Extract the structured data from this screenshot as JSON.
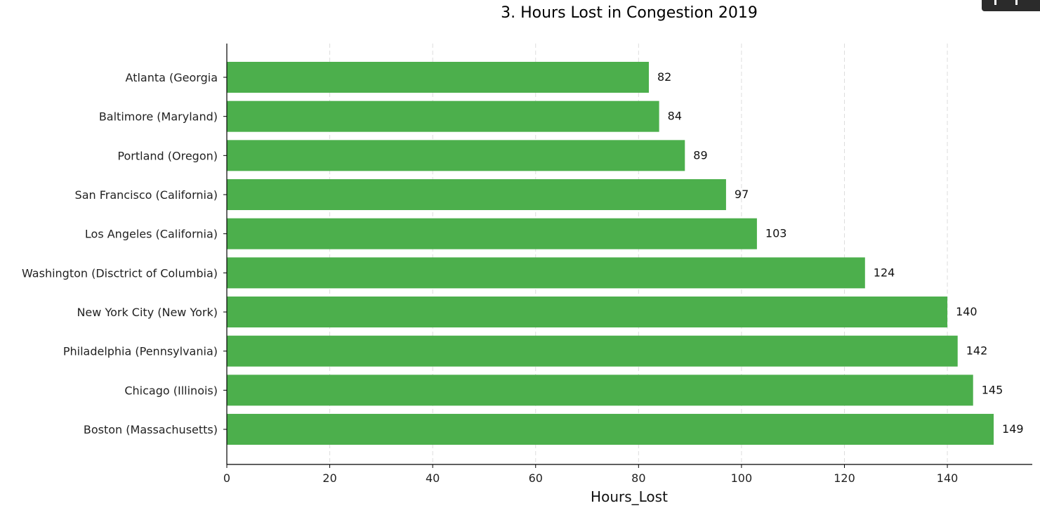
{
  "chart_data": {
    "type": "bar",
    "orientation": "horizontal",
    "title": "3. Hours Lost in Congestion 2019",
    "xlabel": "Hours_Lost",
    "ylabel": "",
    "categories": [
      "Atlanta (Georgia",
      "Baltimore (Maryland)",
      "Portland (Oregon)",
      "San Francisco (California)",
      "Los Angeles (California)",
      "Washington (Disctrict of Columbia)",
      "New York City (New York)",
      "Philadelphia (Pennsylvania)",
      "Chicago (Illinois)",
      "Boston (Massachusetts)"
    ],
    "values": [
      82,
      84,
      89,
      97,
      103,
      124,
      140,
      142,
      145,
      149
    ],
    "xlim": [
      0,
      156.5
    ],
    "xticks": [
      0,
      20,
      40,
      60,
      80,
      100,
      120,
      140
    ],
    "grid": "vertical-dashed",
    "bar_color": "#4caf4c",
    "grid_color": "#dddddd",
    "axis_color": "#000000"
  },
  "toolbar": {
    "icon": "chart-toolbar-icon"
  }
}
